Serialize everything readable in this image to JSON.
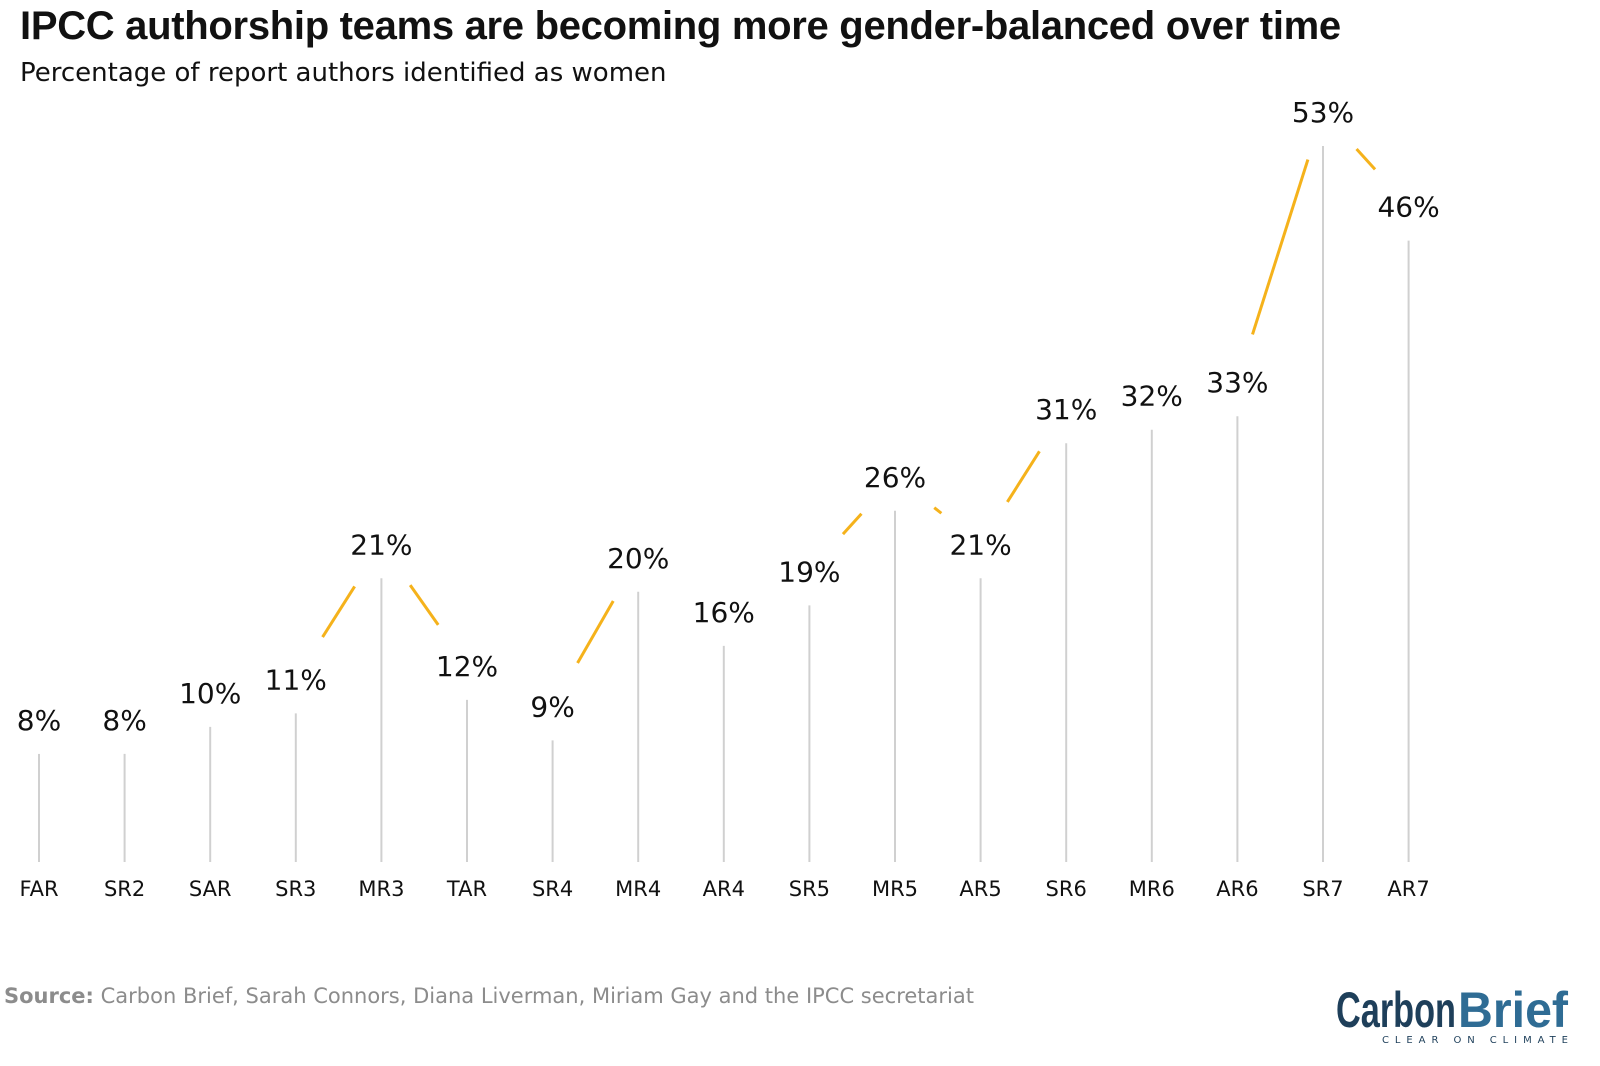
{
  "title": "IPCC authorship teams are becoming more gender-balanced over time",
  "subtitle": "Percentage of report authors identified as women",
  "source": {
    "label": "Source:",
    "text": "Carbon Brief, Sarah Connors, Diana Liverman, Miriam Gay and the IPCC secretariat"
  },
  "logo": {
    "name_part1": "Carbon",
    "name_part2": "Brief",
    "tagline": "CLEAR ON CLIMATE"
  },
  "colors": {
    "line": "#f5b21b",
    "stem": "#d0d0d0",
    "text": "#111111",
    "logo_dark": "#1e3f5a",
    "logo_blue": "#2f6c94"
  },
  "chart_data": {
    "type": "line",
    "categories": [
      "FAR",
      "SR2",
      "SAR",
      "SR3",
      "MR3",
      "TAR",
      "SR4",
      "MR4",
      "AR4",
      "SR5",
      "MR5",
      "AR5",
      "SR6",
      "MR6",
      "AR6",
      "SR7",
      "AR7"
    ],
    "values": [
      8,
      8,
      10,
      11,
      21,
      12,
      9,
      20,
      16,
      19,
      26,
      21,
      31,
      32,
      33,
      53,
      46
    ],
    "value_labels": [
      "8%",
      "8%",
      "10%",
      "11%",
      "21%",
      "12%",
      "9%",
      "20%",
      "16%",
      "19%",
      "26%",
      "21%",
      "31%",
      "32%",
      "33%",
      "53%",
      "46%"
    ],
    "ylim": [
      0,
      53
    ],
    "grid": false,
    "xlabel": "",
    "ylabel": ""
  }
}
